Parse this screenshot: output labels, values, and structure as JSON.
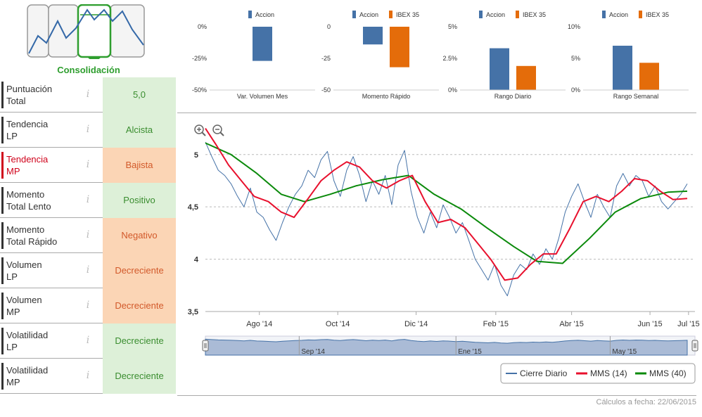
{
  "phase": {
    "label": "Consolidación"
  },
  "indicators": [
    {
      "name_line1": "Puntuación",
      "name_line2": "Total",
      "value": "5,0",
      "tone": "green",
      "alert": false
    },
    {
      "name_line1": "Tendencia",
      "name_line2": "LP",
      "value": "Alcista",
      "tone": "green",
      "alert": false
    },
    {
      "name_line1": "Tendencia",
      "name_line2": "MP",
      "value": "Bajista",
      "tone": "orange",
      "alert": true
    },
    {
      "name_line1": "Momento",
      "name_line2": "Total Lento",
      "value": "Positivo",
      "tone": "green",
      "alert": false
    },
    {
      "name_line1": "Momento",
      "name_line2": "Total Rápido",
      "value": "Negativo",
      "tone": "orange",
      "alert": false
    },
    {
      "name_line1": "Volumen",
      "name_line2": "LP",
      "value": "Decreciente",
      "tone": "orange",
      "alert": false
    },
    {
      "name_line1": "Volumen",
      "name_line2": "MP",
      "value": "Decreciente",
      "tone": "orange",
      "alert": false
    },
    {
      "name_line1": "Volatilidad",
      "name_line2": "LP",
      "value": "Decreciente",
      "tone": "green",
      "alert": false
    },
    {
      "name_line1": "Volatilidad",
      "name_line2": "MP",
      "value": "Decreciente",
      "tone": "green",
      "alert": false
    }
  ],
  "info_glyph": "i",
  "footer": {
    "calc_date": "Cálculos a fecha: 22/06/2015"
  },
  "colors": {
    "accion": "#4572a7",
    "ibex": "#e46c0a",
    "cierre": "#4572a7",
    "mms14": "#e8102d",
    "mms40": "#0b8a0b"
  },
  "chart_data": [
    {
      "type": "bar",
      "xlabel": "Var. Volumen Mes",
      "legend": [
        "Accion"
      ],
      "series": [
        {
          "name": "Accion",
          "values": [
            -27
          ]
        }
      ],
      "ylim": [
        -50,
        0
      ],
      "yticks": [
        "0%",
        "-25%",
        "-50%"
      ],
      "ytick_values": [
        0,
        -25,
        -50
      ]
    },
    {
      "type": "bar",
      "xlabel": "Momento Rápido",
      "legend": [
        "Accion",
        "IBEX 35"
      ],
      "series": [
        {
          "name": "Accion",
          "values": [
            -14
          ]
        },
        {
          "name": "IBEX 35",
          "values": [
            -32
          ]
        }
      ],
      "ylim": [
        -50,
        0
      ],
      "yticks": [
        "0",
        "-25",
        "-50"
      ],
      "ytick_values": [
        0,
        -25,
        -50
      ]
    },
    {
      "type": "bar",
      "xlabel": "Rango Diario",
      "legend": [
        "Accion",
        "IBEX 35"
      ],
      "series": [
        {
          "name": "Accion",
          "values": [
            3.3
          ]
        },
        {
          "name": "IBEX 35",
          "values": [
            1.9
          ]
        }
      ],
      "ylim": [
        0,
        5
      ],
      "yticks": [
        "5%",
        "2.5%",
        "0%"
      ],
      "ytick_values": [
        5,
        2.5,
        0
      ]
    },
    {
      "type": "bar",
      "xlabel": "Rango Semanal",
      "legend": [
        "Accion",
        "IBEX 35"
      ],
      "series": [
        {
          "name": "Accion",
          "values": [
            7.0
          ]
        },
        {
          "name": "IBEX 35",
          "values": [
            4.3
          ]
        }
      ],
      "ylim": [
        0,
        10
      ],
      "yticks": [
        "10%",
        "5%",
        "0%"
      ],
      "ytick_values": [
        10,
        5,
        0
      ]
    },
    {
      "type": "line",
      "ylim": [
        3.5,
        5.2
      ],
      "yticks": [
        "5",
        "4,5",
        "4",
        "3,5"
      ],
      "ytick_values": [
        5,
        4.5,
        4,
        3.5
      ],
      "xlim": [
        "2014-06-20",
        "2015-07-06"
      ],
      "xticks": [
        {
          "label": "Ago '14",
          "date": "2014-08-01"
        },
        {
          "label": "Oct '14",
          "date": "2014-10-01"
        },
        {
          "label": "Dic '14",
          "date": "2014-12-01"
        },
        {
          "label": "Feb '15",
          "date": "2015-02-01"
        },
        {
          "label": "Abr '15",
          "date": "2015-04-01"
        },
        {
          "label": "Jun '15",
          "date": "2015-06-01"
        },
        {
          "label": "Jul '15",
          "date": "2015-07-01"
        }
      ],
      "navigator_ticks": [
        {
          "label": "Sep '14",
          "date": "2014-09-01"
        },
        {
          "label": "Ene '15",
          "date": "2015-01-01"
        },
        {
          "label": "May '15",
          "date": "2015-05-01"
        }
      ],
      "legend_position": "bottom-right",
      "series": [
        {
          "name": "Cierre Diario",
          "points": [
            [
              "2014-06-20",
              5.12
            ],
            [
              "2014-06-25",
              4.98
            ],
            [
              "2014-06-30",
              4.85
            ],
            [
              "2014-07-05",
              4.8
            ],
            [
              "2014-07-10",
              4.72
            ],
            [
              "2014-07-15",
              4.6
            ],
            [
              "2014-07-20",
              4.5
            ],
            [
              "2014-07-25",
              4.68
            ],
            [
              "2014-07-30",
              4.45
            ],
            [
              "2014-08-04",
              4.4
            ],
            [
              "2014-08-09",
              4.28
            ],
            [
              "2014-08-14",
              4.18
            ],
            [
              "2014-08-19",
              4.35
            ],
            [
              "2014-08-24",
              4.5
            ],
            [
              "2014-08-29",
              4.62
            ],
            [
              "2014-09-03",
              4.7
            ],
            [
              "2014-09-08",
              4.85
            ],
            [
              "2014-09-13",
              4.78
            ],
            [
              "2014-09-18",
              4.95
            ],
            [
              "2014-09-23",
              5.03
            ],
            [
              "2014-09-28",
              4.75
            ],
            [
              "2014-10-03",
              4.6
            ],
            [
              "2014-10-08",
              4.85
            ],
            [
              "2014-10-13",
              4.98
            ],
            [
              "2014-10-18",
              4.8
            ],
            [
              "2014-10-23",
              4.55
            ],
            [
              "2014-10-28",
              4.75
            ],
            [
              "2014-11-02",
              4.62
            ],
            [
              "2014-11-07",
              4.8
            ],
            [
              "2014-11-12",
              4.52
            ],
            [
              "2014-11-17",
              4.9
            ],
            [
              "2014-11-22",
              5.04
            ],
            [
              "2014-11-27",
              4.65
            ],
            [
              "2014-12-02",
              4.4
            ],
            [
              "2014-12-07",
              4.25
            ],
            [
              "2014-12-12",
              4.45
            ],
            [
              "2014-12-17",
              4.3
            ],
            [
              "2014-12-22",
              4.52
            ],
            [
              "2014-12-27",
              4.4
            ],
            [
              "2015-01-01",
              4.25
            ],
            [
              "2015-01-06",
              4.35
            ],
            [
              "2015-01-11",
              4.18
            ],
            [
              "2015-01-16",
              4.0
            ],
            [
              "2015-01-21",
              3.9
            ],
            [
              "2015-01-26",
              3.8
            ],
            [
              "2015-01-31",
              3.95
            ],
            [
              "2015-02-05",
              3.75
            ],
            [
              "2015-02-10",
              3.65
            ],
            [
              "2015-02-15",
              3.85
            ],
            [
              "2015-02-20",
              3.95
            ],
            [
              "2015-02-25",
              3.9
            ],
            [
              "2015-03-02",
              4.05
            ],
            [
              "2015-03-07",
              3.95
            ],
            [
              "2015-03-12",
              4.1
            ],
            [
              "2015-03-17",
              4.0
            ],
            [
              "2015-03-22",
              4.2
            ],
            [
              "2015-03-27",
              4.45
            ],
            [
              "2015-04-01",
              4.6
            ],
            [
              "2015-04-06",
              4.72
            ],
            [
              "2015-04-11",
              4.55
            ],
            [
              "2015-04-16",
              4.4
            ],
            [
              "2015-04-21",
              4.62
            ],
            [
              "2015-04-26",
              4.5
            ],
            [
              "2015-05-01",
              4.4
            ],
            [
              "2015-05-06",
              4.7
            ],
            [
              "2015-05-11",
              4.82
            ],
            [
              "2015-05-16",
              4.7
            ],
            [
              "2015-05-21",
              4.8
            ],
            [
              "2015-05-26",
              4.75
            ],
            [
              "2015-05-31",
              4.6
            ],
            [
              "2015-06-05",
              4.7
            ],
            [
              "2015-06-10",
              4.55
            ],
            [
              "2015-06-15",
              4.48
            ],
            [
              "2015-06-20",
              4.55
            ],
            [
              "2015-06-25",
              4.62
            ],
            [
              "2015-06-30",
              4.72
            ]
          ]
        },
        {
          "name": "MMS (14)",
          "points": [
            [
              "2014-06-20",
              5.25
            ],
            [
              "2014-06-28",
              5.1
            ],
            [
              "2014-07-08",
              4.9
            ],
            [
              "2014-07-18",
              4.75
            ],
            [
              "2014-07-28",
              4.6
            ],
            [
              "2014-08-08",
              4.55
            ],
            [
              "2014-08-18",
              4.45
            ],
            [
              "2014-08-28",
              4.4
            ],
            [
              "2014-09-08",
              4.58
            ],
            [
              "2014-09-18",
              4.75
            ],
            [
              "2014-09-28",
              4.85
            ],
            [
              "2014-10-08",
              4.93
            ],
            [
              "2014-10-18",
              4.88
            ],
            [
              "2014-10-28",
              4.75
            ],
            [
              "2014-11-08",
              4.68
            ],
            [
              "2014-11-18",
              4.75
            ],
            [
              "2014-11-28",
              4.8
            ],
            [
              "2014-12-08",
              4.55
            ],
            [
              "2014-12-18",
              4.35
            ],
            [
              "2014-12-28",
              4.38
            ],
            [
              "2015-01-08",
              4.3
            ],
            [
              "2015-01-18",
              4.15
            ],
            [
              "2015-01-28",
              4.0
            ],
            [
              "2015-02-08",
              3.8
            ],
            [
              "2015-02-18",
              3.82
            ],
            [
              "2015-02-28",
              3.95
            ],
            [
              "2015-03-10",
              4.05
            ],
            [
              "2015-03-20",
              4.05
            ],
            [
              "2015-03-30",
              4.28
            ],
            [
              "2015-04-10",
              4.55
            ],
            [
              "2015-04-20",
              4.6
            ],
            [
              "2015-04-30",
              4.55
            ],
            [
              "2015-05-10",
              4.65
            ],
            [
              "2015-05-20",
              4.77
            ],
            [
              "2015-05-30",
              4.75
            ],
            [
              "2015-06-09",
              4.65
            ],
            [
              "2015-06-19",
              4.57
            ],
            [
              "2015-06-30",
              4.58
            ]
          ]
        },
        {
          "name": "MMS (40)",
          "points": [
            [
              "2014-06-20",
              5.11
            ],
            [
              "2014-07-10",
              5.0
            ],
            [
              "2014-07-30",
              4.82
            ],
            [
              "2014-08-18",
              4.62
            ],
            [
              "2014-09-05",
              4.55
            ],
            [
              "2014-09-25",
              4.62
            ],
            [
              "2014-10-15",
              4.7
            ],
            [
              "2014-11-05",
              4.76
            ],
            [
              "2014-11-25",
              4.8
            ],
            [
              "2014-12-15",
              4.62
            ],
            [
              "2015-01-05",
              4.48
            ],
            [
              "2015-01-25",
              4.3
            ],
            [
              "2015-02-15",
              4.12
            ],
            [
              "2015-03-05",
              3.98
            ],
            [
              "2015-03-25",
              3.96
            ],
            [
              "2015-04-15",
              4.2
            ],
            [
              "2015-05-05",
              4.45
            ],
            [
              "2015-05-25",
              4.58
            ],
            [
              "2015-06-15",
              4.64
            ],
            [
              "2015-06-30",
              4.65
            ]
          ]
        }
      ]
    }
  ]
}
